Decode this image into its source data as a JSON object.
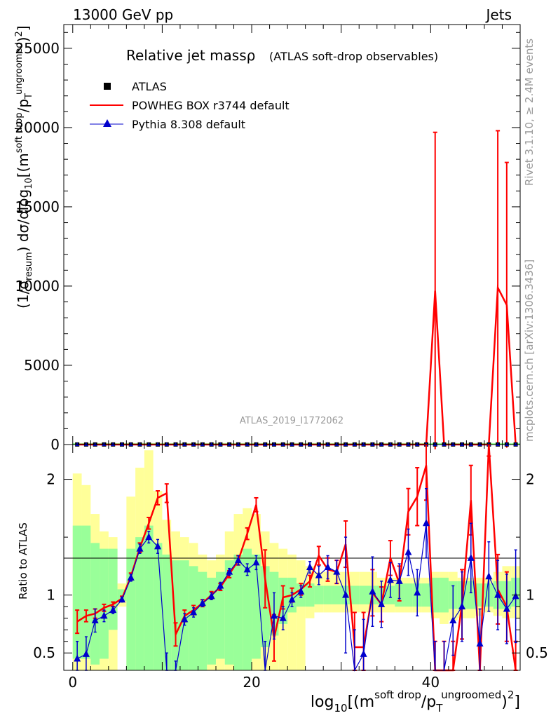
{
  "header": {
    "left": "13000 GeV pp",
    "right": "Jets"
  },
  "side_text": {
    "rivet": "Rivet 3.1.10, ≥ 2.4M events",
    "mcplots": "mcplots.cern.ch [arXiv:1306.3436]"
  },
  "analysis_id": "ATLAS_2019_I1772062",
  "colors": {
    "data": "#000000",
    "powheg": "#ff0000",
    "pythia": "#0000cc",
    "band_outer": "#ffff99",
    "band_inner": "#99ff99"
  },
  "chart_data": [
    {
      "panel": "main",
      "type": "line",
      "title": "Relative jet massρ",
      "subtitle": "(ATLAS soft-drop observables)",
      "ylabel": "(1/σresum) dσ/dlog10[(m^soft drop/pT^ungroomed)^2]",
      "xlim": [
        -1,
        50
      ],
      "ylim": [
        0,
        26500
      ],
      "yticks": [
        0,
        5000,
        10000,
        15000,
        20000,
        25000
      ],
      "legend": [
        "ATLAS",
        "POWHEG BOX r3744 default",
        "Pythia 8.308 default"
      ],
      "legend_position": "top-left",
      "x": [
        0.5,
        1.5,
        2.5,
        3.5,
        4.5,
        5.5,
        6.5,
        7.5,
        8.5,
        9.5,
        10.5,
        11.5,
        12.5,
        13.5,
        14.5,
        15.5,
        16.5,
        17.5,
        18.5,
        19.5,
        20.5,
        21.5,
        22.5,
        23.5,
        24.5,
        25.5,
        26.5,
        27.5,
        28.5,
        29.5,
        30.5,
        31.5,
        32.5,
        33.5,
        34.5,
        35.5,
        36.5,
        37.5,
        38.5,
        39.5,
        40.5,
        41.5,
        42.5,
        43.5,
        44.5,
        45.5,
        46.5,
        47.5,
        48.5,
        49.5
      ],
      "series": [
        {
          "name": "ATLAS",
          "values": [
            5,
            5,
            5,
            5,
            5,
            5,
            5,
            5,
            5,
            5,
            5,
            5,
            5,
            5,
            5,
            5,
            5,
            5,
            5,
            5,
            5,
            5,
            5,
            5,
            5,
            5,
            5,
            5,
            5,
            5,
            5,
            5,
            5,
            5,
            5,
            5,
            5,
            5,
            5,
            5,
            5,
            5,
            5,
            5,
            5,
            5,
            5,
            5,
            5,
            5
          ]
        },
        {
          "name": "POWHEG BOX r3744 default",
          "values": [
            0,
            0,
            0,
            0,
            0,
            0,
            0,
            0,
            0,
            0,
            0,
            0,
            0,
            0,
            0,
            0,
            0,
            0,
            0,
            0,
            0,
            0,
            0,
            0,
            0,
            0,
            0,
            0,
            0,
            0,
            0,
            0,
            0,
            0,
            0,
            0,
            0,
            0,
            0,
            0,
            9700,
            0,
            0,
            0,
            0,
            0,
            0,
            9900,
            8800,
            0
          ],
          "errors": [
            0,
            0,
            0,
            0,
            0,
            0,
            0,
            0,
            0,
            0,
            0,
            0,
            0,
            0,
            0,
            0,
            0,
            0,
            0,
            0,
            0,
            0,
            0,
            0,
            0,
            0,
            0,
            0,
            0,
            0,
            0,
            0,
            0,
            0,
            0,
            0,
            0,
            0,
            0,
            0,
            10000,
            0,
            0,
            0,
            0,
            0,
            0,
            9900,
            9000,
            0
          ]
        },
        {
          "name": "Pythia 8.308 default",
          "values": [
            0,
            0,
            0,
            0,
            0,
            0,
            0,
            0,
            0,
            0,
            0,
            0,
            0,
            0,
            0,
            0,
            0,
            0,
            0,
            0,
            0,
            0,
            0,
            0,
            0,
            0,
            0,
            0,
            0,
            0,
            0,
            0,
            0,
            0,
            0,
            0,
            0,
            0,
            0,
            0,
            0,
            0,
            0,
            0,
            0,
            0,
            0,
            0,
            0,
            0
          ]
        }
      ]
    },
    {
      "panel": "ratio",
      "type": "line",
      "ylabel": "Ratio to ATLAS",
      "xlabel": "log10[(m^soft drop/pT^ungroomed)^2]",
      "xlim": [
        -1,
        50
      ],
      "ylim": [
        0.35,
        2.3
      ],
      "yticks": [
        0.5,
        1,
        2
      ],
      "xticks": [
        0,
        20,
        40
      ],
      "x": [
        0.5,
        1.5,
        2.5,
        3.5,
        4.5,
        5.5,
        6.5,
        7.5,
        8.5,
        9.5,
        10.5,
        11.5,
        12.5,
        13.5,
        14.5,
        15.5,
        16.5,
        17.5,
        18.5,
        19.5,
        20.5,
        21.5,
        22.5,
        23.5,
        24.5,
        25.5,
        26.5,
        27.5,
        28.5,
        29.5,
        30.5,
        31.5,
        32.5,
        33.5,
        34.5,
        35.5,
        36.5,
        37.5,
        38.5,
        39.5,
        40.5,
        41.5,
        42.5,
        43.5,
        44.5,
        45.5,
        46.5,
        47.5,
        48.5,
        49.5
      ],
      "band_outer": [
        [
          0.3,
          2.05
        ],
        [
          0.3,
          1.95
        ],
        [
          0.3,
          1.7
        ],
        [
          0.3,
          1.55
        ],
        [
          0.3,
          1.5
        ],
        [
          0.9,
          1.1
        ],
        [
          0.3,
          1.85
        ],
        [
          0.3,
          2.1
        ],
        [
          0.3,
          2.25
        ],
        [
          0.3,
          1.9
        ],
        [
          0.3,
          1.65
        ],
        [
          0.3,
          1.55
        ],
        [
          0.3,
          1.5
        ],
        [
          0.3,
          1.45
        ],
        [
          0.3,
          1.35
        ],
        [
          0.3,
          1.3
        ],
        [
          0.3,
          1.35
        ],
        [
          0.3,
          1.55
        ],
        [
          0.3,
          1.7
        ],
        [
          0.3,
          1.75
        ],
        [
          0.3,
          1.7
        ],
        [
          0.3,
          1.55
        ],
        [
          0.3,
          1.45
        ],
        [
          0.3,
          1.4
        ],
        [
          0.3,
          1.35
        ],
        [
          0.3,
          1.3
        ],
        [
          0.8,
          1.25
        ],
        [
          0.85,
          1.2
        ],
        [
          0.85,
          1.2
        ],
        [
          0.85,
          1.2
        ],
        [
          0.85,
          1.2
        ],
        [
          0.85,
          1.2
        ],
        [
          0.85,
          1.2
        ],
        [
          0.85,
          1.2
        ],
        [
          0.85,
          1.15
        ],
        [
          0.85,
          1.15
        ],
        [
          0.85,
          1.15
        ],
        [
          0.85,
          1.15
        ],
        [
          0.85,
          1.15
        ],
        [
          0.85,
          1.15
        ],
        [
          0.8,
          1.2
        ],
        [
          0.75,
          1.2
        ],
        [
          0.78,
          1.2
        ],
        [
          0.8,
          1.15
        ],
        [
          0.8,
          1.15
        ],
        [
          0.82,
          1.15
        ],
        [
          0.85,
          1.15
        ],
        [
          0.82,
          1.2
        ],
        [
          0.8,
          1.25
        ],
        [
          0.8,
          1.25
        ]
      ],
      "band_inner": [
        [
          0.45,
          1.6
        ],
        [
          0.45,
          1.6
        ],
        [
          0.4,
          1.45
        ],
        [
          0.45,
          1.4
        ],
        [
          0.7,
          1.4
        ],
        [
          0.95,
          1.05
        ],
        [
          0.3,
          1.4
        ],
        [
          0.3,
          1.5
        ],
        [
          0.3,
          1.6
        ],
        [
          0.3,
          1.45
        ],
        [
          0.3,
          1.35
        ],
        [
          0.3,
          1.3
        ],
        [
          0.3,
          1.3
        ],
        [
          0.3,
          1.25
        ],
        [
          0.3,
          1.2
        ],
        [
          0.4,
          1.15
        ],
        [
          0.45,
          1.2
        ],
        [
          0.4,
          1.3
        ],
        [
          0.3,
          1.35
        ],
        [
          0.3,
          1.4
        ],
        [
          0.45,
          1.35
        ],
        [
          0.55,
          1.25
        ],
        [
          0.65,
          1.2
        ],
        [
          0.75,
          1.15
        ],
        [
          0.85,
          1.15
        ],
        [
          0.9,
          1.1
        ],
        [
          0.9,
          1.1
        ],
        [
          0.92,
          1.08
        ],
        [
          0.92,
          1.08
        ],
        [
          0.92,
          1.08
        ],
        [
          0.92,
          1.08
        ],
        [
          0.92,
          1.08
        ],
        [
          0.92,
          1.08
        ],
        [
          0.92,
          1.08
        ],
        [
          0.92,
          1.08
        ],
        [
          0.92,
          1.08
        ],
        [
          0.9,
          1.1
        ],
        [
          0.9,
          1.1
        ],
        [
          0.9,
          1.1
        ],
        [
          0.9,
          1.1
        ],
        [
          0.85,
          1.15
        ],
        [
          0.85,
          1.15
        ],
        [
          0.88,
          1.12
        ],
        [
          0.88,
          1.12
        ],
        [
          0.88,
          1.12
        ],
        [
          0.9,
          1.1
        ],
        [
          0.9,
          1.1
        ],
        [
          0.88,
          1.12
        ],
        [
          0.88,
          1.12
        ],
        [
          0.9,
          1.15
        ]
      ],
      "series": [
        {
          "name": "POWHEG BOX r3744 default",
          "values": [
            0.77,
            0.82,
            0.84,
            0.89,
            0.92,
            0.97,
            1.16,
            1.41,
            1.62,
            1.84,
            1.88,
            0.66,
            0.82,
            0.87,
            0.93,
            1.0,
            1.07,
            1.18,
            1.3,
            1.53,
            1.78,
            1.14,
            0.63,
            0.98,
            1.0,
            1.05,
            1.12,
            1.34,
            1.22,
            1.2,
            1.44,
            0.55,
            0.55,
            1.02,
            0.92,
            1.32,
            1.1,
            1.72,
            1.85,
            2.12,
            0.3,
            0.3,
            0.3,
            0.92,
            1.82,
            0.3,
            2.5,
            1.05,
            0.9,
            0.3
          ],
          "errors": [
            0.1,
            0.05,
            0.04,
            0.03,
            0.02,
            0.02,
            0.03,
            0.04,
            0.05,
            0.06,
            0.08,
            0.1,
            0.05,
            0.04,
            0.03,
            0.03,
            0.03,
            0.03,
            0.04,
            0.05,
            0.06,
            0.25,
            0.2,
            0.1,
            0.06,
            0.05,
            0.05,
            0.08,
            0.1,
            0.1,
            0.2,
            0.3,
            0.3,
            0.2,
            0.15,
            0.15,
            0.15,
            0.2,
            0.25,
            0.3,
            0.3,
            0.3,
            0.3,
            0.3,
            0.3,
            0.3,
            0.3,
            0.3,
            0.3,
            0.3
          ]
        },
        {
          "name": "Pythia 8.308 default",
          "values": [
            0.45,
            0.49,
            0.78,
            0.82,
            0.87,
            0.96,
            1.15,
            1.4,
            1.5,
            1.42,
            0.3,
            0.33,
            0.79,
            0.85,
            0.93,
            0.99,
            1.08,
            1.2,
            1.3,
            1.22,
            1.28,
            0.3,
            0.82,
            0.8,
            0.96,
            1.03,
            1.24,
            1.17,
            1.24,
            1.2,
            1.0,
            0.3,
            0.49,
            1.03,
            0.92,
            1.13,
            1.12,
            1.37,
            1.02,
            1.62,
            0.3,
            0.3,
            0.78,
            0.9,
            1.32,
            0.58,
            1.16,
            1.0,
            0.88,
            0.99
          ],
          "errors": [
            0.15,
            0.15,
            0.1,
            0.05,
            0.03,
            0.02,
            0.03,
            0.04,
            0.05,
            0.06,
            0.2,
            0.1,
            0.05,
            0.04,
            0.03,
            0.03,
            0.03,
            0.03,
            0.04,
            0.05,
            0.06,
            0.3,
            0.2,
            0.1,
            0.06,
            0.05,
            0.05,
            0.08,
            0.1,
            0.1,
            0.5,
            0.4,
            0.3,
            0.3,
            0.2,
            0.15,
            0.15,
            0.2,
            0.2,
            0.3,
            0.3,
            0.3,
            0.3,
            0.3,
            0.3,
            0.3,
            0.3,
            0.3,
            0.3,
            0.4
          ]
        }
      ]
    }
  ]
}
